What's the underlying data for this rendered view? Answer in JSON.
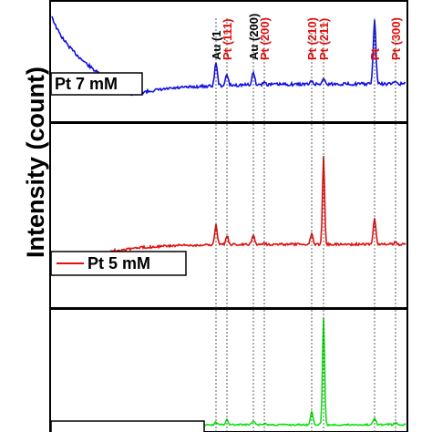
{
  "chart_data": {
    "type": "line",
    "ylabel": "Intensity (count)",
    "grid": false,
    "panels": [
      {
        "legend": "Pt 7 mM",
        "color": "#1010e0",
        "legend_style": "box",
        "legend_position": "bottom-left"
      },
      {
        "legend": "Pt 5 mM",
        "color": "#e01010",
        "legend_style": "line-sample",
        "legend_position": "bottom-left"
      },
      {
        "legend": "",
        "color": "#10e010",
        "legend_style": "box",
        "legend_position": "bottom-left"
      }
    ],
    "reference_lines": [
      {
        "label": "Au (1",
        "color": "#000000"
      },
      {
        "label": "Pt (111)",
        "color": "#e01010"
      },
      {
        "label": "Au (200)",
        "color": "#000000"
      },
      {
        "label": "Pt (200)",
        "color": "#e01010"
      },
      {
        "label": "Pt (210)",
        "color": "#e01010"
      },
      {
        "label": "Pt (211)",
        "color": "#e01010"
      },
      {
        "label": "Pt",
        "color": "#e01010"
      },
      {
        "label": "Pt (300)",
        "color": "#e01010"
      }
    ]
  }
}
